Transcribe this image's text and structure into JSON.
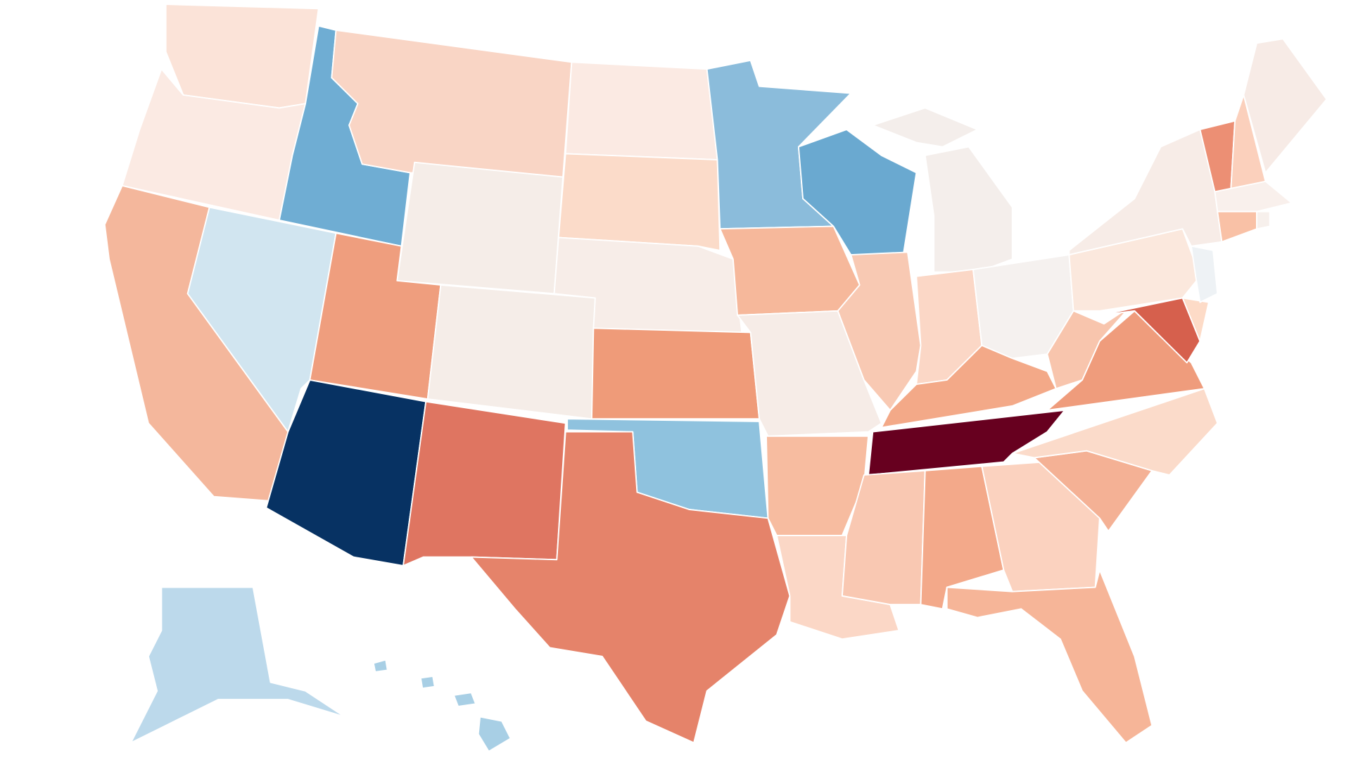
{
  "map": {
    "regions": [
      {
        "color": "#fbe3d8"
      },
      {
        "color": "#fbeae3"
      },
      {
        "color": "#f4b79c"
      },
      {
        "color": "#d1e5f0"
      },
      {
        "color": "#6fadd3"
      },
      {
        "color": "#f9d5c5"
      },
      {
        "color": "#f5ede8"
      },
      {
        "color": "#ef9e7e"
      },
      {
        "color": "#073263"
      },
      {
        "color": "#f5ede8"
      },
      {
        "color": "#df7561"
      },
      {
        "color": "#fbeae3"
      },
      {
        "color": "#fbdbc9"
      },
      {
        "color": "#f7ede8"
      },
      {
        "color": "#ef9b79"
      },
      {
        "color": "#8fc2de"
      },
      {
        "color": "#e5836a"
      },
      {
        "color": "#8bbcdb"
      },
      {
        "color": "#f6b89b"
      },
      {
        "color": "#f6ece7"
      },
      {
        "color": "#f7bca0"
      },
      {
        "color": "#fbd7c6"
      },
      {
        "color": "#6aa9d0"
      },
      {
        "color": "#f8c9b3"
      },
      {
        "color": "#f4eeeb"
      },
      {
        "color": "#fbd7c6"
      },
      {
        "color": "#f5f1ef"
      },
      {
        "color": "#f3a988"
      },
      {
        "color": "#67001f"
      },
      {
        "color": "#f9c8b2"
      },
      {
        "color": "#f3a98a"
      },
      {
        "color": "#fbd2bf"
      },
      {
        "color": "#f6b598"
      },
      {
        "color": "#f4b195"
      },
      {
        "color": "#fbdbca"
      },
      {
        "color": "#ef9c7c"
      },
      {
        "color": "#f8c5ad"
      },
      {
        "color": "#d6604d"
      },
      {
        "color": "#fddbc7"
      },
      {
        "color": "#fbe8dd"
      },
      {
        "color": "#eef2f5"
      },
      {
        "color": "#f7ece7"
      },
      {
        "color": "#ec8f74"
      },
      {
        "color": "#fbd0bc"
      },
      {
        "color": "#f7ebe6"
      },
      {
        "color": "#f9f0ec"
      },
      {
        "color": "#f9c1a6"
      },
      {
        "color": "#f7f0ec"
      },
      {
        "color": "#bcd9eb"
      },
      {
        "color": "#a8cfe5"
      }
    ]
  }
}
